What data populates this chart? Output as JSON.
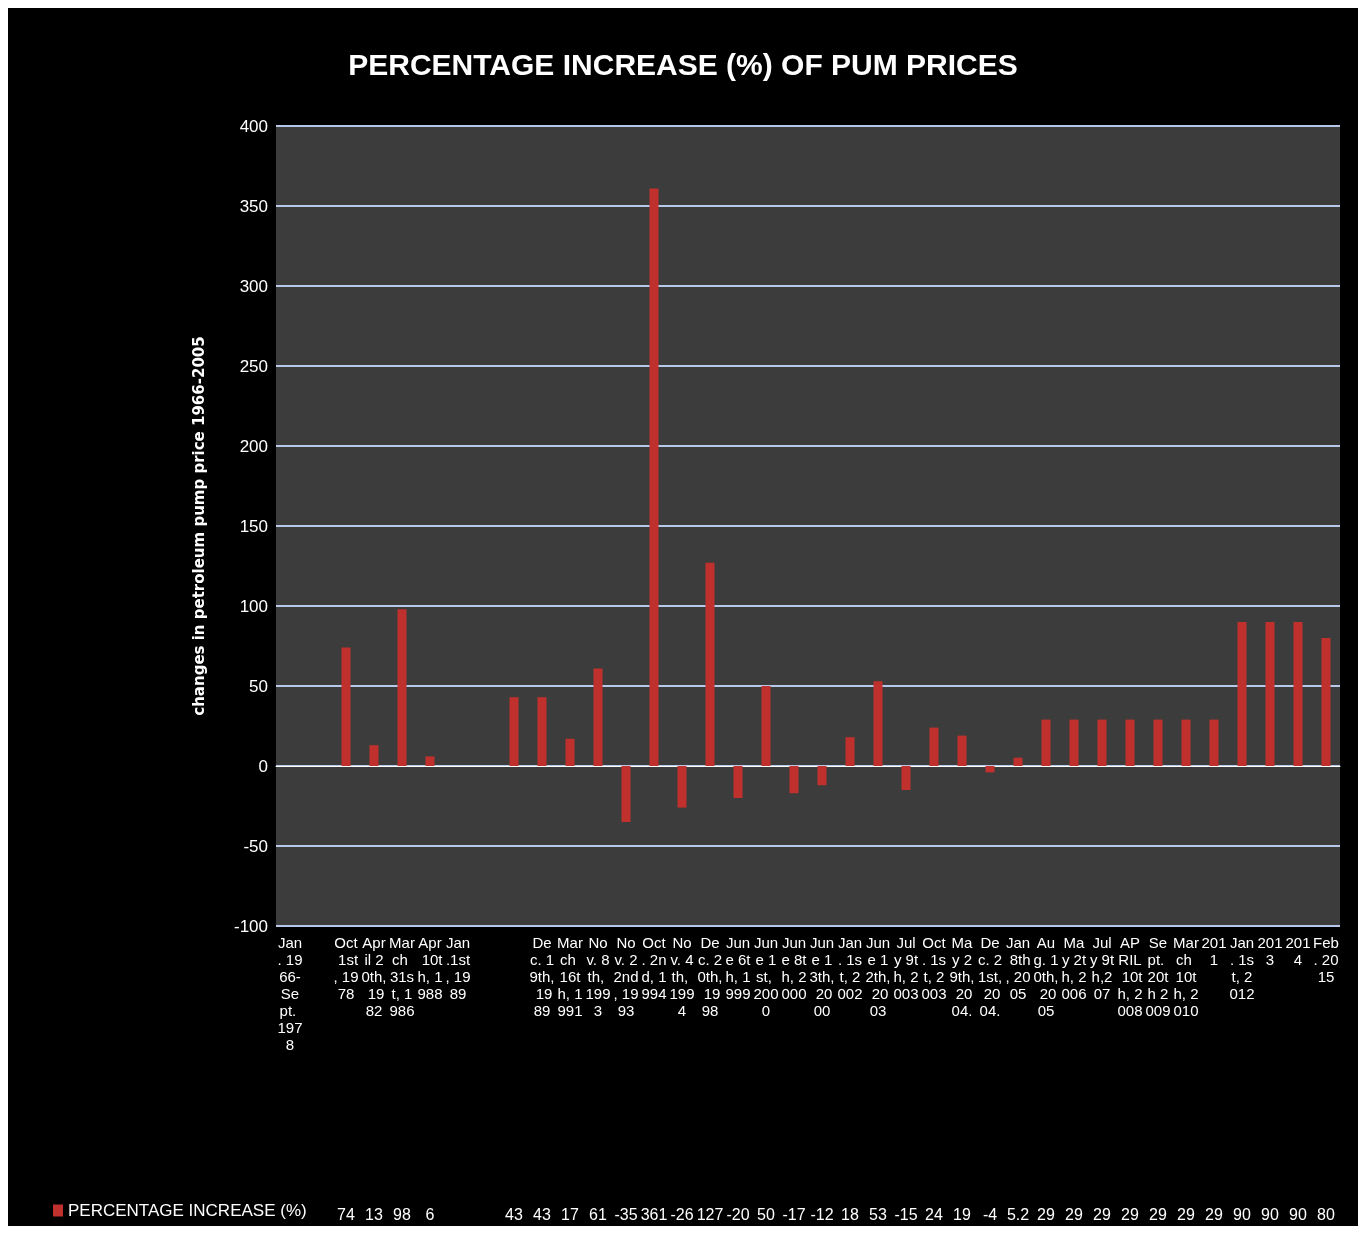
{
  "chart_data": {
    "type": "bar",
    "title": "PERCENTAGE INCREASE (%) OF PUM PRICES",
    "ylabel": "changes in petroleum pump price 1966-2005",
    "categories": [
      "Jan. 1966-Sept. 1978",
      null,
      "Oct 1st, 1978",
      "April 20th, 1982",
      "March 31st, 1986",
      "Apr 10th, 1988",
      "Jan.1st, 1989",
      null,
      null,
      "Dec. 19th, 1989",
      "March 16th, 1991",
      "Nov. 8th, 1993",
      "Nov. 22nd, 1993",
      "Oct. 2nd, 1994",
      "Nov. 4th, 1994",
      "Dec. 20th, 1998",
      "June 6th, 1999",
      "June 1st, 2000",
      "June 8th, 2000",
      "June 13th, 2000",
      "Jan. 1st, 2002",
      "June 12th, 2003",
      "July 9th, 2003",
      "Oct. 1st, 2003",
      "May 29th, 2004.",
      "Dec. 21st, 2004.",
      "Jan 8th, 2005",
      "Aug. 10th, 2005",
      "May 2th, 2006",
      "July 9th,207",
      "APRIL 10th, 2008",
      "Sept. 20th 2009",
      "March 10th, 2010",
      "2011",
      "Jan. 1st, 2012",
      "2013",
      "2014",
      "Feb. 2015"
    ],
    "series": [
      {
        "name": "PERCENTAGE INCREASE (%)",
        "color": "#c0302c",
        "values": [
          null,
          null,
          74,
          13,
          98,
          6,
          null,
          null,
          43,
          43,
          17,
          61,
          -35,
          361,
          -26,
          127,
          -20,
          50,
          -17,
          -12,
          18,
          53,
          -15,
          24,
          19,
          -4,
          5.2,
          29,
          29,
          29,
          29,
          29,
          29,
          29,
          90,
          90,
          90,
          80
        ]
      }
    ],
    "ylim": [
      -100,
      400
    ],
    "yticks": [
      -100,
      -50,
      0,
      50,
      100,
      150,
      200,
      250,
      300,
      350,
      400
    ],
    "grid": "y",
    "legend": "bottom",
    "data_labels": true
  }
}
